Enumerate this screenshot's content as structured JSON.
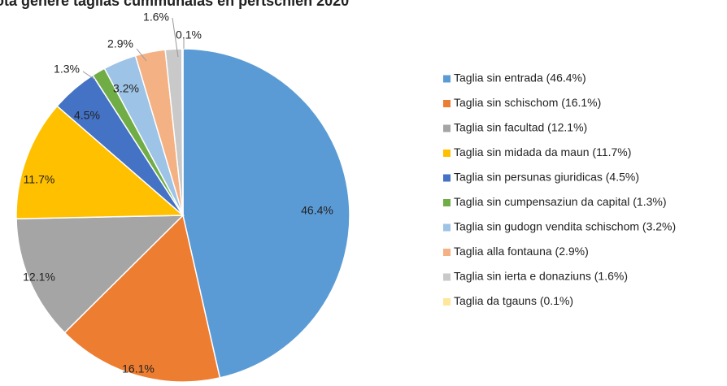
{
  "chart_data": {
    "type": "pie",
    "title": "ota genere taglias cummunalas en pertschien 2020",
    "categories": [
      "Taglia sin entrada (46.4%)",
      "Taglia sin schischom (16.1%)",
      "Taglia sin facultad (12.1%)",
      "Taglia sin midada da maun (11.7%)",
      "Taglia sin persunas giuridicas (4.5%)",
      "Taglia sin cumpensaziun da capital (1.3%)",
      "Taglia sin gudogn vendita schischom (3.2%)",
      "Taglia alla fontauna (2.9%)",
      "Taglia sin ierta e donaziuns (1.6%)",
      "Taglia da tgauns (0.1%)"
    ],
    "values": [
      46.4,
      16.1,
      12.1,
      11.7,
      4.5,
      1.3,
      3.2,
      2.9,
      1.6,
      0.1
    ],
    "value_labels": [
      "46.4%",
      "16.1%",
      "12.1%",
      "11.7%",
      "4.5%",
      "1.3%",
      "3.2%",
      "2.9%",
      "1.6%",
      "0.1%"
    ],
    "colors": [
      "#5b9bd5",
      "#ed7d31",
      "#a5a5a5",
      "#ffc000",
      "#4472c4",
      "#70ad47",
      "#9dc3e6",
      "#f4b183",
      "#c9c9c9",
      "#ffe699"
    ],
    "legend": "right"
  }
}
